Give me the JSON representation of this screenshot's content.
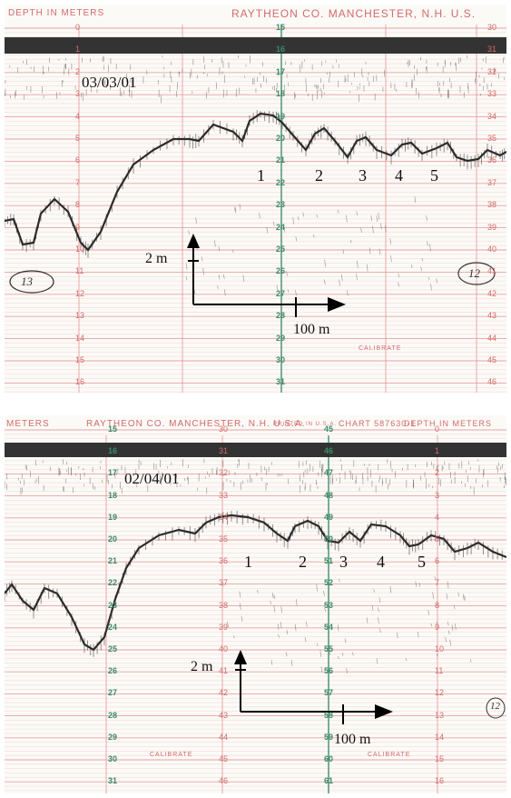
{
  "top_chart": {
    "header_left": "DEPTH IN METERS",
    "header_right": "RAYTHEON CO. MANCHESTER, N.H. U.S.",
    "date": "03/03/01",
    "peaks": [
      "1",
      "2",
      "3",
      "4",
      "5"
    ],
    "vertical_scale_label": "2 m",
    "horizontal_scale_label": "100 m",
    "calibrate_label": "CALIBRATE",
    "circled_left": "13",
    "circled_right": "12",
    "left_ticks": [
      "0",
      "1",
      "2",
      "3",
      "4",
      "5",
      "6",
      "7",
      "8",
      "9",
      "10",
      "11",
      "12",
      "13",
      "14",
      "15",
      "16"
    ],
    "center_ticks": [
      "15",
      "16",
      "17",
      "18",
      "19",
      "20",
      "21",
      "22",
      "23",
      "24",
      "25",
      "26",
      "27",
      "28",
      "29",
      "30",
      "31"
    ],
    "right_ticks": [
      "30",
      "31",
      "32",
      "33",
      "34",
      "35",
      "36",
      "37",
      "38",
      "39",
      "40",
      "41",
      "42",
      "43",
      "44",
      "45",
      "46"
    ]
  },
  "bottom_chart": {
    "header_left": "METERS",
    "header_middle": "RAYTHEON CO. MANCHESTER, N.H. U.S.A.",
    "header_printed": "PRINTED IN U.S.A.",
    "header_chart": "CHART 587630-1",
    "header_right": "DEPTH IN METERS",
    "date": "02/04/01",
    "peaks": [
      "1",
      "2",
      "3",
      "4",
      "5"
    ],
    "vertical_scale_label": "2 m",
    "horizontal_scale_label": "100 m",
    "calibrate_label": "CALIBRATE",
    "circled_right": "12",
    "col_a_ticks": [
      "15",
      "16",
      "17",
      "18",
      "19",
      "20",
      "21",
      "22",
      "23",
      "24",
      "25",
      "26",
      "27",
      "28",
      "29",
      "30",
      "31"
    ],
    "col_b_ticks": [
      "30",
      "31",
      "32",
      "33",
      "34",
      "35",
      "36",
      "37",
      "38",
      "39",
      "40",
      "41",
      "42",
      "43",
      "44",
      "45",
      "46"
    ],
    "col_c_ticks": [
      "45",
      "46",
      "47",
      "48",
      "49",
      "50",
      "51",
      "52",
      "53",
      "54",
      "55",
      "56",
      "57",
      "58",
      "59",
      "60",
      "61"
    ],
    "col_d_ticks": [
      "0",
      "1",
      "2",
      "3",
      "4",
      "5",
      "6",
      "7",
      "8",
      "9",
      "10",
      "11",
      "12",
      "13",
      "14",
      "15",
      "16"
    ]
  },
  "colors": {
    "grid_red": "#e69a9a",
    "grid_green": "#3c8a6a",
    "trace": "#2a2a2a",
    "label_red": "#d46a6a"
  }
}
